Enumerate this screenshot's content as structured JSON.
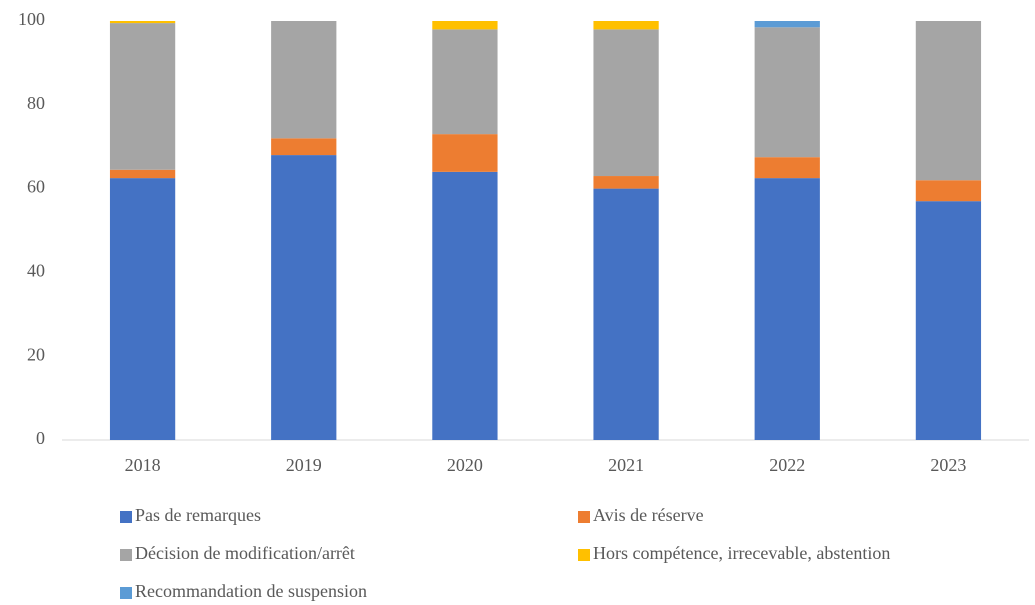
{
  "chart_data": {
    "type": "stacked_bar",
    "categories": [
      "2018",
      "2019",
      "2020",
      "2021",
      "2022",
      "2023"
    ],
    "series": [
      {
        "name": "Pas de remarques",
        "color": "#4472c4",
        "values": [
          62.5,
          68,
          64,
          60,
          62.5,
          57
        ]
      },
      {
        "name": "Avis de réserve",
        "color": "#ed7d31",
        "values": [
          2,
          4,
          9,
          3,
          5,
          5
        ]
      },
      {
        "name": "Décision de modification/arrêt",
        "color": "#a5a5a5",
        "values": [
          35,
          28,
          25,
          35,
          31,
          38
        ]
      },
      {
        "name": "Hors compétence, irrecevable, abstention",
        "color": "#ffc000",
        "values": [
          0.5,
          0,
          2,
          2,
          0,
          0
        ]
      },
      {
        "name": "Recommandation de suspension",
        "color": "#5b9bd5",
        "values": [
          0,
          0,
          0,
          0,
          1.5,
          0
        ]
      }
    ],
    "ylim": [
      0,
      100
    ],
    "yticks": [
      0,
      20,
      40,
      60,
      80,
      100
    ],
    "grid": false,
    "legend": "bottom"
  }
}
